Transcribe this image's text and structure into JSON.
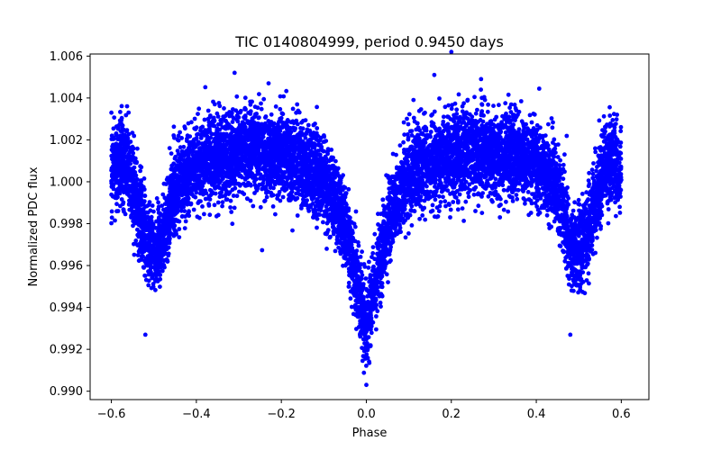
{
  "chart_data": {
    "type": "scatter",
    "title": "TIC 0140804999, period 0.9450 days",
    "xlabel": "Phase",
    "ylabel": "Normalized PDC flux",
    "xlim": [
      -0.65,
      0.665
    ],
    "ylim": [
      0.9896,
      1.0061
    ],
    "x_ticks": [
      -0.6,
      -0.4,
      -0.2,
      0.0,
      0.2,
      0.4,
      0.6
    ],
    "x_tick_labels": [
      "−0.6",
      "−0.4",
      "−0.2",
      "0.0",
      "0.2",
      "0.4",
      "0.6"
    ],
    "y_ticks": [
      0.99,
      0.992,
      0.994,
      0.996,
      0.998,
      1.0,
      1.002,
      1.004,
      1.006
    ],
    "y_tick_labels": [
      "0.990",
      "0.992",
      "0.994",
      "0.996",
      "0.998",
      "1.000",
      "1.002",
      "1.004",
      "1.006"
    ],
    "grid": false,
    "marker_color": "#0000ff",
    "series": [
      {
        "trend_x": [
          -0.6,
          -0.58,
          -0.56,
          -0.54,
          -0.52,
          -0.5,
          -0.48,
          -0.46,
          -0.44,
          -0.4,
          -0.35,
          -0.3,
          -0.25,
          -0.2,
          -0.15,
          -0.1,
          -0.07,
          -0.05,
          -0.03,
          -0.015,
          0.0,
          0.015,
          0.03,
          0.05,
          0.07,
          0.1,
          0.15,
          0.2,
          0.25,
          0.3,
          0.35,
          0.4,
          0.44,
          0.46,
          0.48,
          0.5,
          0.52,
          0.54,
          0.56,
          0.58,
          0.6
        ],
        "trend_y": [
          1.0005,
          1.001,
          1.0006,
          0.999,
          0.9975,
          0.9965,
          0.9972,
          0.999,
          1.0,
          1.0008,
          1.0012,
          1.0014,
          1.0015,
          1.0013,
          1.0008,
          1.0,
          0.999,
          0.9978,
          0.996,
          0.9945,
          0.9932,
          0.9945,
          0.996,
          0.9978,
          0.999,
          1.0002,
          1.001,
          1.0013,
          1.0015,
          1.0014,
          1.0012,
          1.0008,
          1.0,
          0.999,
          0.9972,
          0.9965,
          0.9975,
          0.999,
          1.0006,
          1.001,
          1.0005
        ],
        "trend_scatter": 0.0011,
        "point_count": 9000,
        "outliers": [
          [
            -0.31,
            1.0052
          ],
          [
            0.2,
            1.0062
          ],
          [
            -0.52,
            0.9927
          ],
          [
            0.48,
            0.9927
          ],
          [
            0.27,
            1.0049
          ],
          [
            -0.6,
            1.0033
          ],
          [
            0.59,
            1.0032
          ],
          [
            0.0,
            0.9903
          ],
          [
            -0.23,
            1.0047
          ],
          [
            0.16,
            1.0051
          ]
        ]
      }
    ]
  }
}
